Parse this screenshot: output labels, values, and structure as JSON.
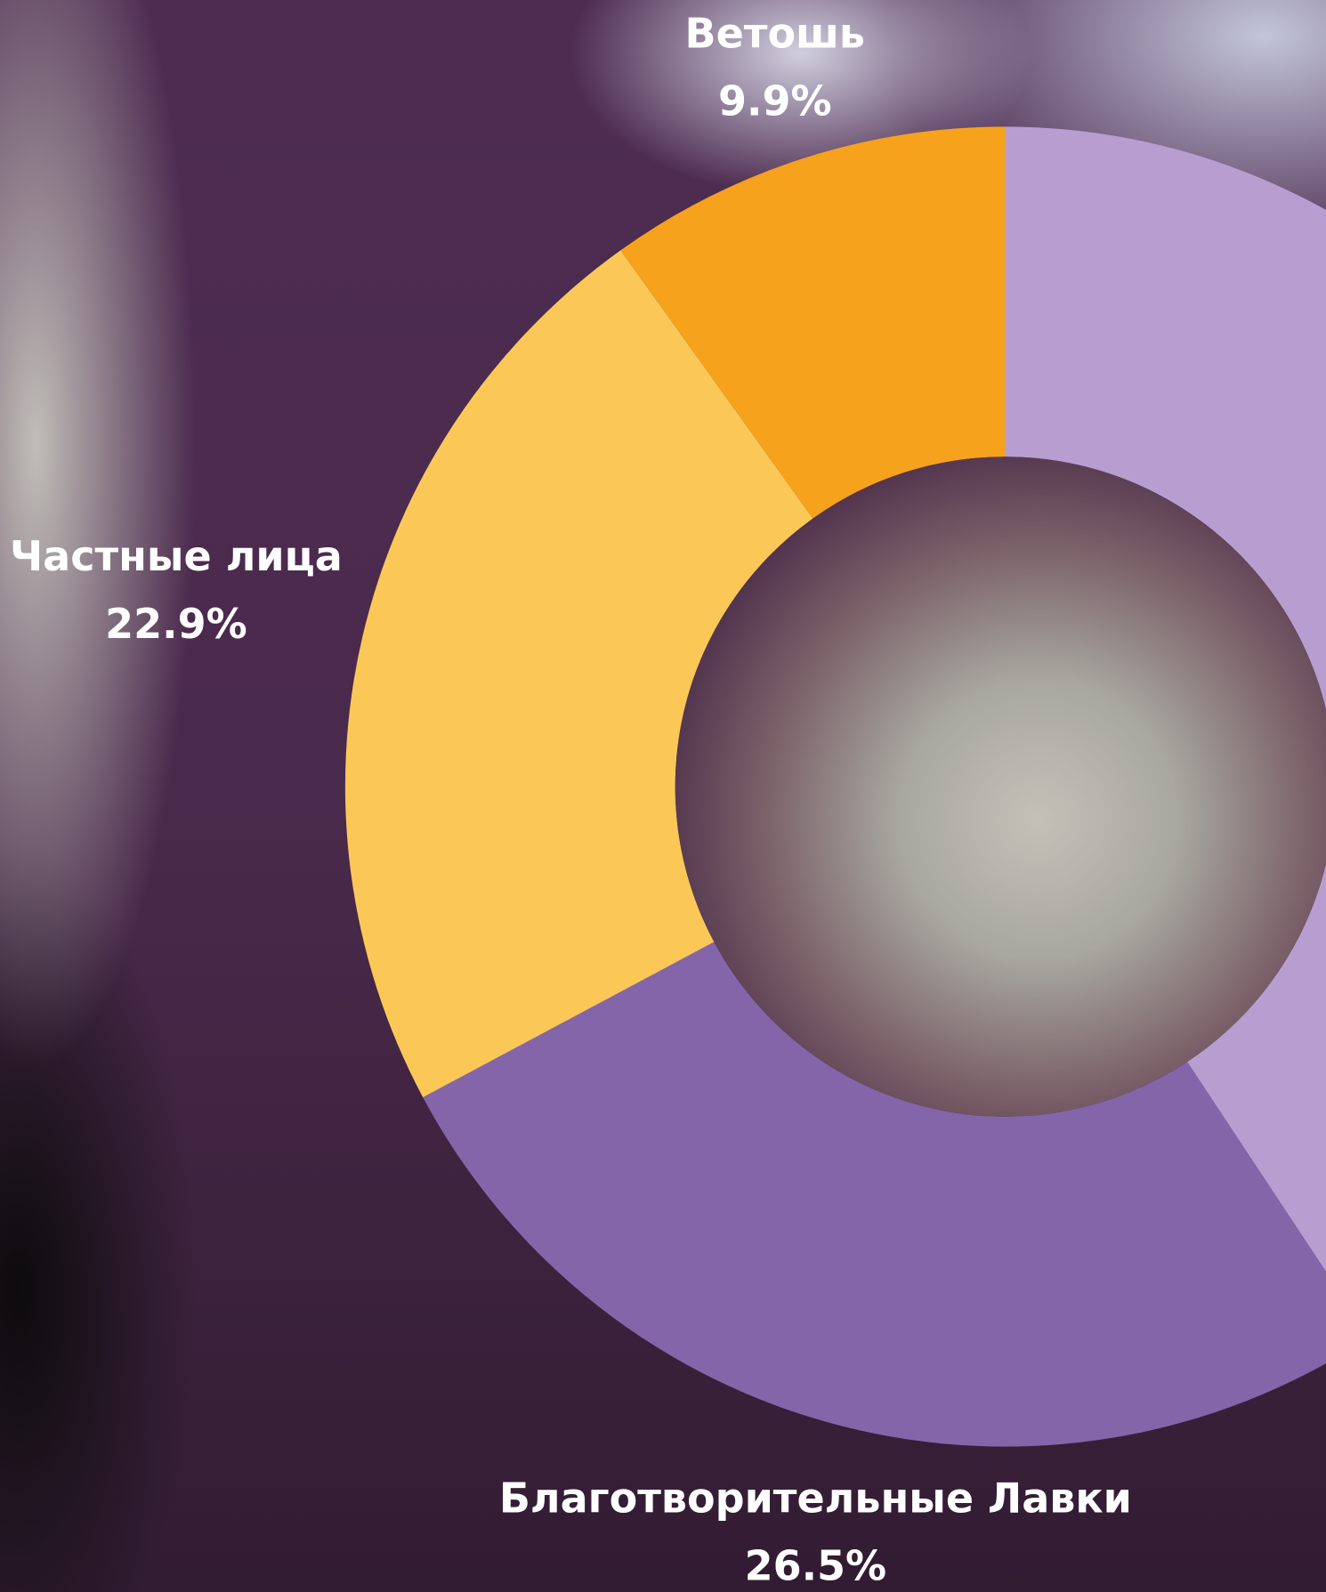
{
  "chart_data": {
    "type": "donut",
    "categories": [
      null,
      "Благотворительные Лавки",
      "Частные лица",
      "Ветошь"
    ],
    "values": [
      40.7,
      26.5,
      22.9,
      9.9
    ],
    "value_labels": [
      null,
      "26.5%",
      "22.9%",
      "9.9%"
    ],
    "colors": [
      "#b89ed0",
      "#8565aa",
      "#fbc858",
      "#f7a21c"
    ]
  }
}
